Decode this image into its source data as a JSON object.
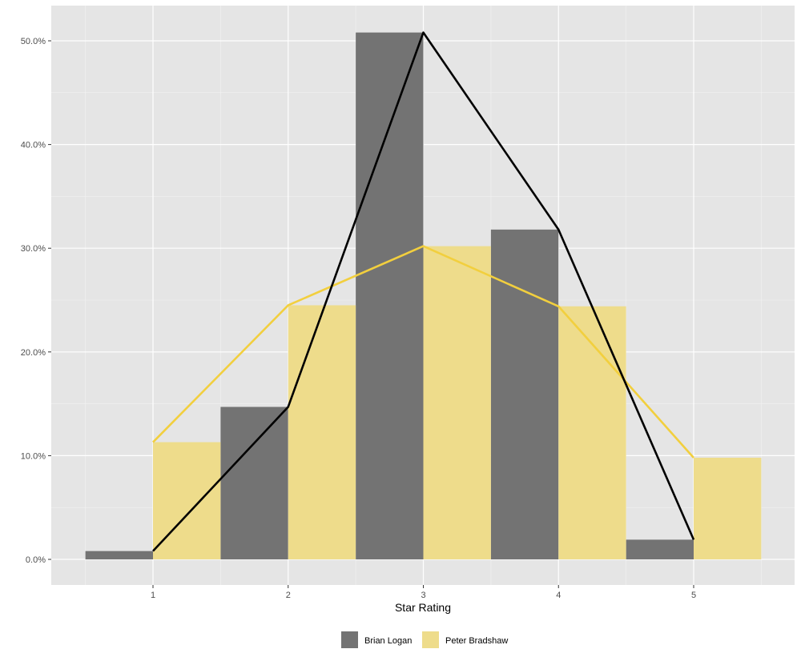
{
  "chart_data": {
    "type": "bar",
    "xlabel": "Star Rating",
    "ylabel": "",
    "x": [
      1,
      2,
      3,
      4,
      5
    ],
    "x_ticks": [
      "1",
      "2",
      "3",
      "4",
      "5"
    ],
    "y_ticks": [
      "0.0%",
      "10.0%",
      "20.0%",
      "30.0%",
      "40.0%",
      "50.0%"
    ],
    "ylim": [
      0,
      0.525
    ],
    "series": [
      {
        "name": "Brian Logan",
        "color": "#737373",
        "line_color": "#000000",
        "values": [
          0.008,
          0.147,
          0.508,
          0.318,
          0.019
        ]
      },
      {
        "name": "Peter Bradshaw",
        "color": "#eedc8b",
        "line_color": "#f2cf3e",
        "values": [
          0.113,
          0.245,
          0.302,
          0.244,
          0.098
        ]
      }
    ],
    "grid": true,
    "legend_position": "bottom"
  }
}
